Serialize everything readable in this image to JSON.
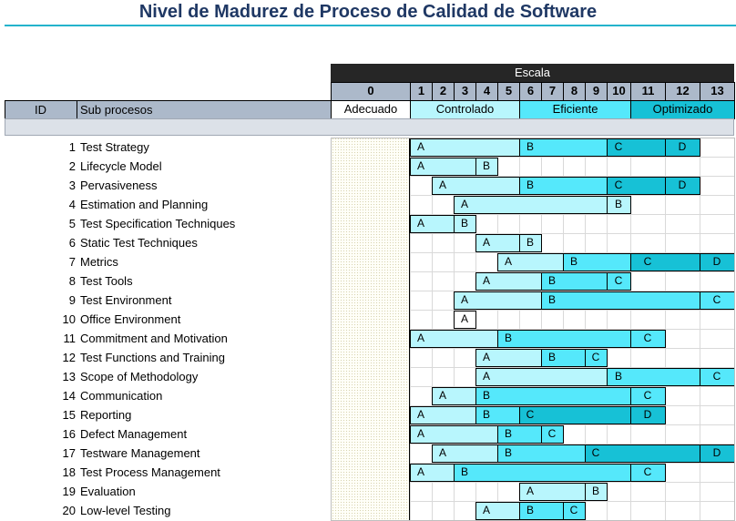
{
  "title": "Nivel de Madurez de Proceso de Calidad de Software",
  "header": {
    "scale_label": "Escala",
    "id_label": "ID",
    "subprocess_label": "Sub procesos"
  },
  "scale_levels": [
    "0",
    "1",
    "2",
    "3",
    "4",
    "5",
    "6",
    "7",
    "8",
    "9",
    "10",
    "11",
    "12",
    "13"
  ],
  "categories": [
    {
      "label": "Adecuado",
      "from": 0,
      "to": 0,
      "color": "#ffffff"
    },
    {
      "label": "Controlado",
      "from": 1,
      "to": 5,
      "color": "#b8f6fd"
    },
    {
      "label": "Eficiente",
      "from": 6,
      "to": 10,
      "color": "#55e8fb"
    },
    {
      "label": "Optimizado",
      "from": 11,
      "to": 13,
      "color": "#17c1d6"
    }
  ],
  "level_colors": {
    "A": "#b8f6fd",
    "B": "#55e8fb",
    "C": "#17c1d6"
  },
  "chart_data": {
    "type": "table",
    "title": "Nivel de Madurez de Proceso de Calidad de Software",
    "x_axis": {
      "label": "Escala",
      "min": 0,
      "max": 13
    },
    "rows": [
      {
        "id": 1,
        "name": "Test Strategy",
        "levels": {
          "A": 1,
          "B": 6,
          "C": 10,
          "D": 12
        }
      },
      {
        "id": 2,
        "name": "Lifecycle Model",
        "levels": {
          "A": 1,
          "B": 4
        }
      },
      {
        "id": 3,
        "name": "Pervasiveness",
        "levels": {
          "A": 2,
          "B": 6,
          "C": 10,
          "D": 12
        }
      },
      {
        "id": 4,
        "name": "Estimation and Planning",
        "levels": {
          "A": 3,
          "B": 10
        }
      },
      {
        "id": 5,
        "name": "Test Specification Techniques",
        "levels": {
          "A": 1,
          "B": 3
        }
      },
      {
        "id": 6,
        "name": "Static Test Techniques",
        "levels": {
          "A": 4,
          "B": 6
        }
      },
      {
        "id": 7,
        "name": "Metrics",
        "levels": {
          "A": 5,
          "B": 8,
          "C": 11,
          "D": 13
        }
      },
      {
        "id": 8,
        "name": "Test Tools",
        "levels": {
          "A": 4,
          "B": 7,
          "C": 10
        }
      },
      {
        "id": 9,
        "name": "Test Environment",
        "levels": {
          "A": 3,
          "B": 7,
          "C": 13
        }
      },
      {
        "id": 10,
        "name": "Office Environment",
        "levels": {
          "A": 3
        }
      },
      {
        "id": 11,
        "name": "Commitment and Motivation",
        "levels": {
          "A": 1,
          "B": 5,
          "C": 11
        }
      },
      {
        "id": 12,
        "name": "Test Functions and Training",
        "levels": {
          "A": 4,
          "B": 7,
          "C": 9
        }
      },
      {
        "id": 13,
        "name": "Scope of Methodology",
        "levels": {
          "A": 4,
          "B": 10,
          "C": 13
        }
      },
      {
        "id": 14,
        "name": "Communication",
        "levels": {
          "A": 2,
          "B": 4,
          "C": 11
        }
      },
      {
        "id": 15,
        "name": "Reporting",
        "levels": {
          "A": 1,
          "B": 4,
          "C": 6,
          "D": 11
        }
      },
      {
        "id": 16,
        "name": "Defect Management",
        "levels": {
          "A": 1,
          "B": 5,
          "C": 7
        }
      },
      {
        "id": 17,
        "name": "Testware Management",
        "levels": {
          "A": 2,
          "B": 5,
          "C": 9,
          "D": 13
        }
      },
      {
        "id": 18,
        "name": "Test Process Management",
        "levels": {
          "A": 1,
          "B": 3,
          "C": 11
        }
      },
      {
        "id": 19,
        "name": "Evaluation",
        "levels": {
          "A": 6,
          "B": 9
        }
      },
      {
        "id": 20,
        "name": "Low-level Testing",
        "levels": {
          "A": 4,
          "B": 6,
          "C": 8
        }
      }
    ]
  }
}
